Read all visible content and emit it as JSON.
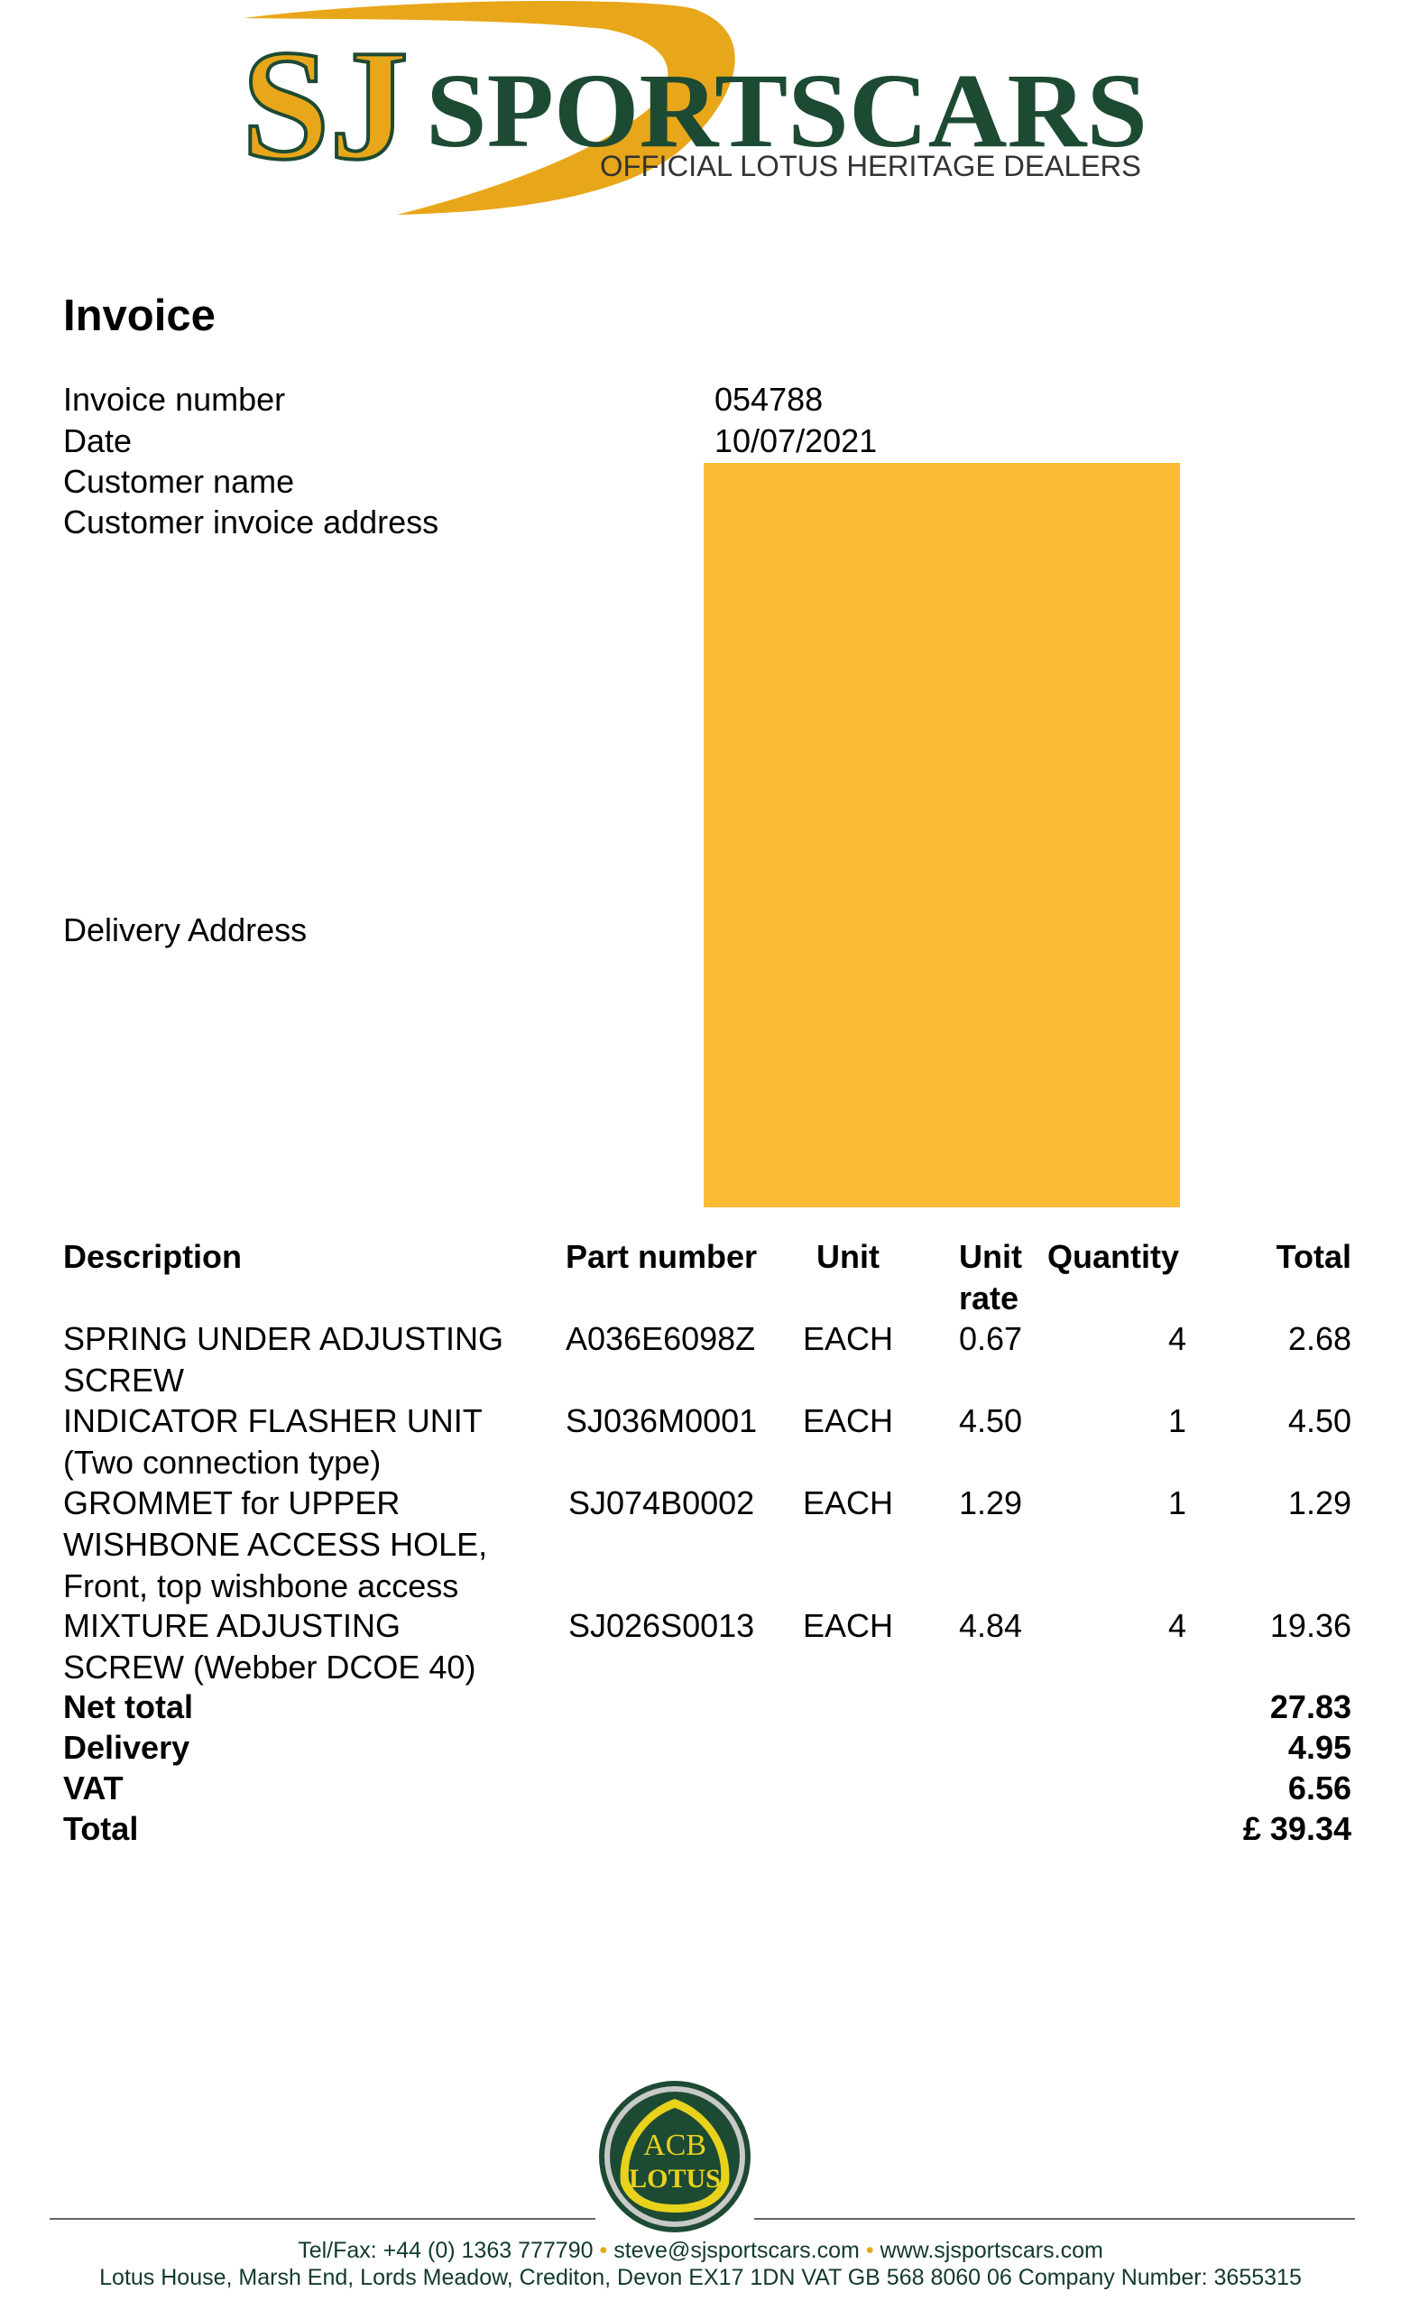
{
  "header": {
    "logo_letters": "SJ",
    "logo_name": "SPORTSCARS",
    "logo_tagline": "OFFICIAL LOTUS HERITAGE DEALERS"
  },
  "invoice": {
    "title": "Invoice",
    "fields": [
      {
        "label": "Invoice number",
        "value": "054788"
      },
      {
        "label": "Date",
        "value": "10/07/2021"
      },
      {
        "label": "Customer name",
        "value": ""
      },
      {
        "label": "Customer invoice address",
        "value": ""
      },
      {
        "label": "Delivery Address",
        "value": ""
      }
    ],
    "redaction_color": "#fbbb34"
  },
  "table": {
    "headers": {
      "description": "Description",
      "part_number": "Part number",
      "unit": "Unit",
      "unit_rate_1": "Unit",
      "unit_rate_2": "rate",
      "quantity": "Quantity",
      "total": "Total"
    },
    "rows": [
      {
        "desc": [
          "SPRING UNDER ADJUSTING",
          "SCREW"
        ],
        "part": "A036E6098Z",
        "unit": "EACH",
        "rate": "0.67",
        "qty": "4",
        "total": "2.68"
      },
      {
        "desc": [
          "INDICATOR FLASHER UNIT",
          "(Two connection type)"
        ],
        "part": "SJ036M0001",
        "unit": "EACH",
        "rate": "4.50",
        "qty": "1",
        "total": "4.50"
      },
      {
        "desc": [
          "GROMMET for UPPER",
          "WISHBONE ACCESS HOLE,",
          "Front, top wishbone access"
        ],
        "part": "SJ074B0002",
        "unit": "EACH",
        "rate": "1.29",
        "qty": "1",
        "total": "1.29"
      },
      {
        "desc": [
          "MIXTURE ADJUSTING",
          "SCREW (Webber DCOE 40)"
        ],
        "part": "SJ026S0013",
        "unit": "EACH",
        "rate": "4.84",
        "qty": "4",
        "total": "19.36"
      }
    ]
  },
  "totals": [
    {
      "label": "Net total",
      "value": "27.83"
    },
    {
      "label": "Delivery",
      "value": "4.95"
    },
    {
      "label": "VAT",
      "value": "6.56"
    },
    {
      "label": "Total",
      "value": "£ 39.34"
    }
  ],
  "footer": {
    "badge_text": "LOTUS",
    "tel": "Tel/Fax: +44 (0) 1363 777790",
    "email": "steve@sjsportscars.com",
    "web": "www.sjsportscars.com",
    "address": "Lotus House, Marsh End, Lords Meadow, Crediton, Devon EX17 1DN VAT GB 568 8060 06 Company Number: 3655315"
  },
  "colors": {
    "brand_green": "#1d4a33",
    "brand_yellow": "#e8a61a"
  }
}
